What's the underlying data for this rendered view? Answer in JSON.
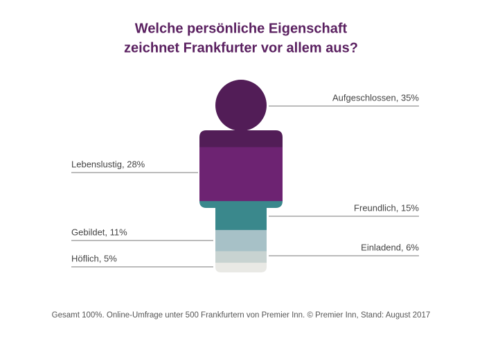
{
  "chart_data": {
    "type": "stacked-figure",
    "title": [
      "Welche persönliche Eigenschaft",
      "zeichnet Frankfurter vor allem aus?"
    ],
    "values": [
      35,
      28,
      15,
      11,
      6,
      5
    ],
    "value_labels": [
      "Aufgeschlossen, 35%",
      "Lebenslustig, 28%",
      "Freundlich, 15%",
      "Gebildet, 11%",
      "Einladend, 6%",
      "Höflich, 5%"
    ],
    "colors": [
      "#521d57",
      "#6d2372",
      "#3a888c",
      "#a7c1c7",
      "#c8d3d1",
      "#e9e9e5"
    ],
    "total": 100,
    "note": "Gesamt 100%. Online-Umfrage unter 500 Frankfurtern von Premier Inn. © Premier Inn, Stand: August 2017"
  }
}
